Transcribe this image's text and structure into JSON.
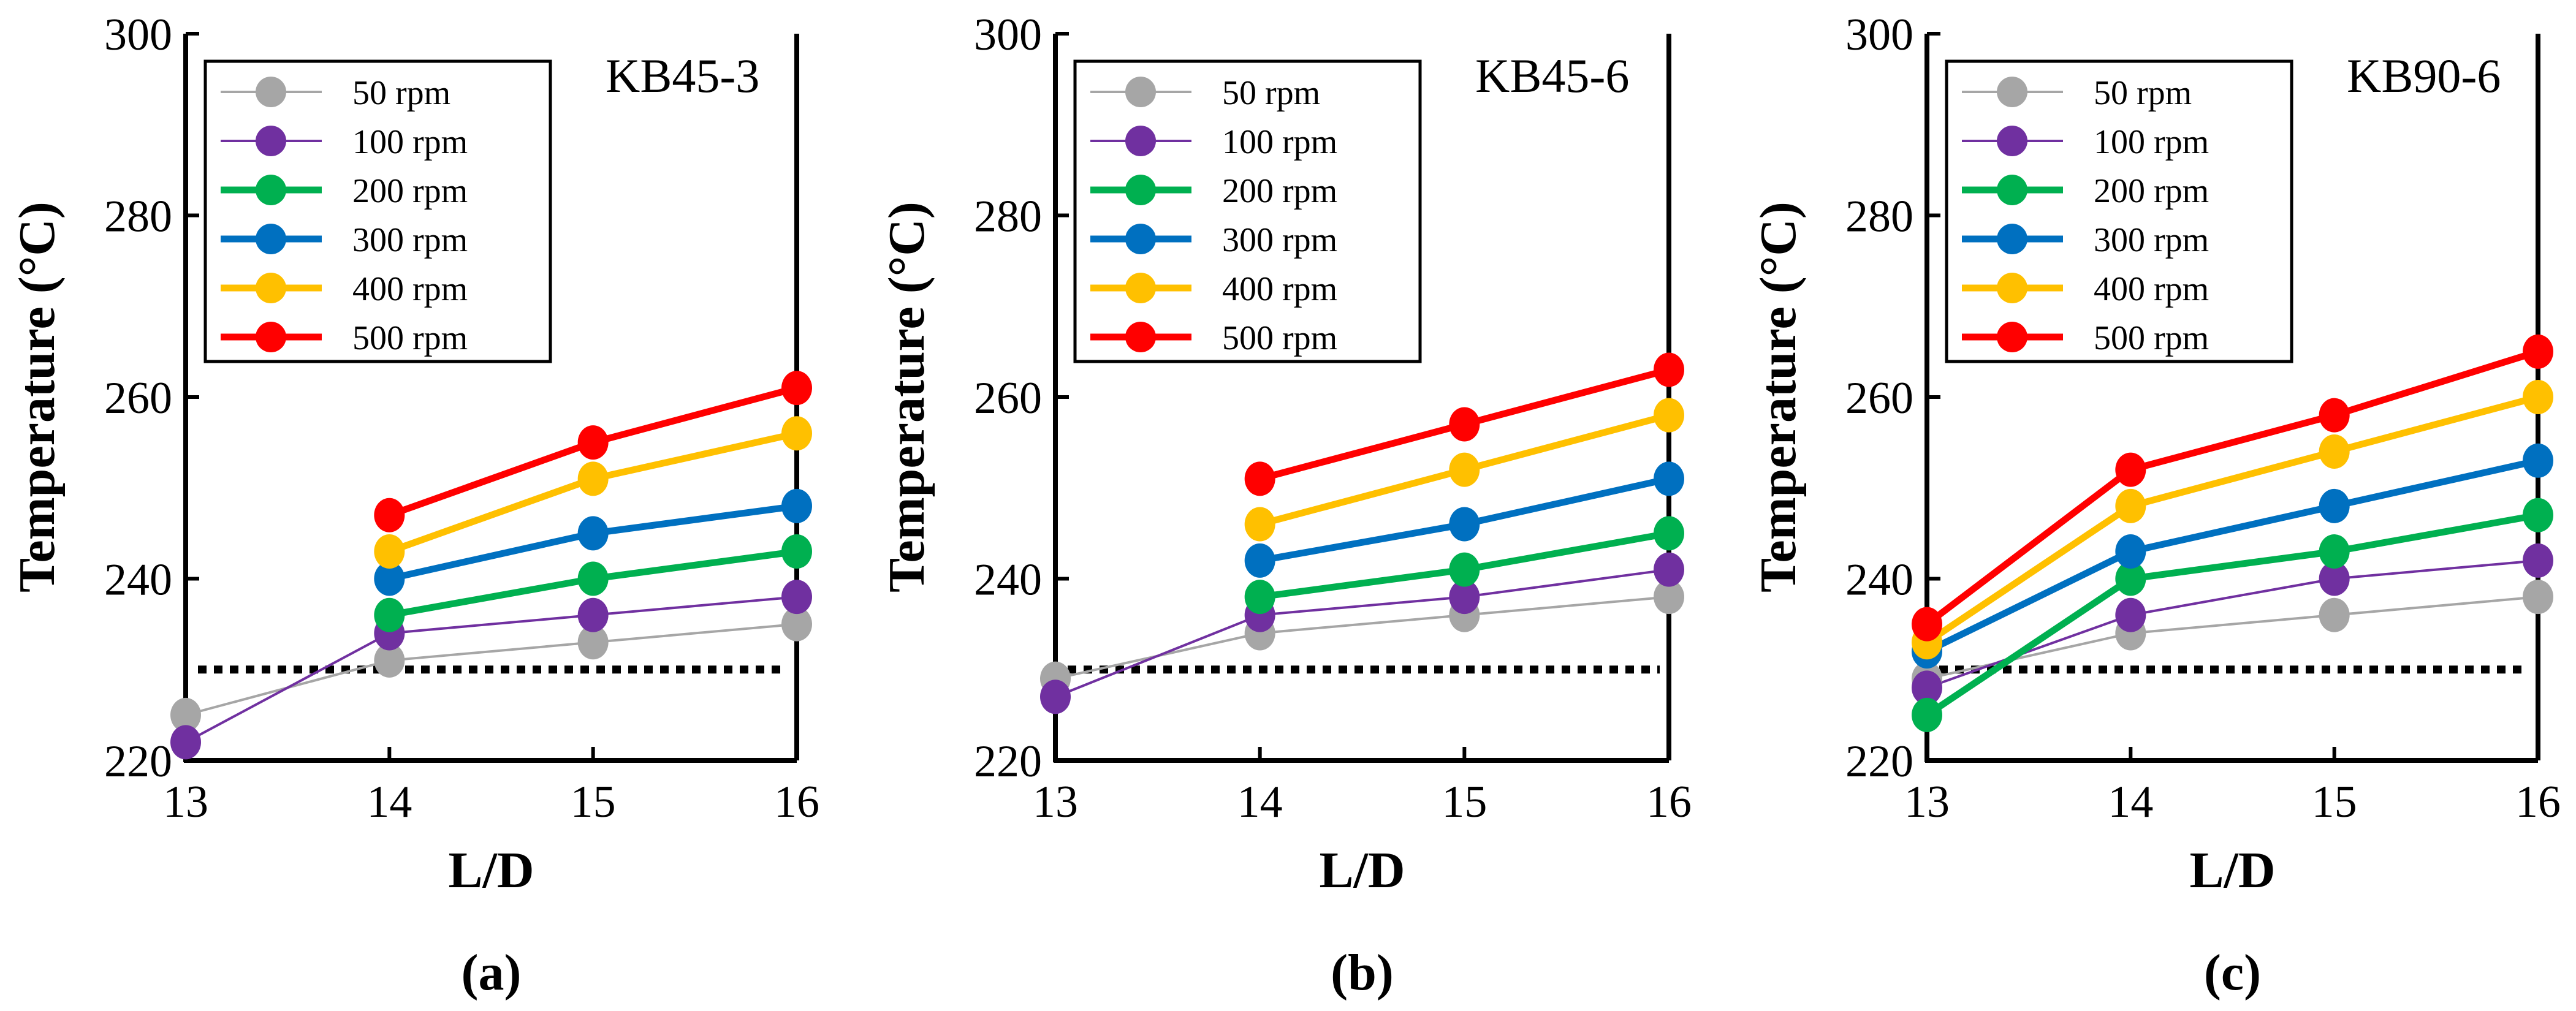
{
  "chart_data": [
    {
      "type": "line",
      "caption": "(a)",
      "title": "KB45-3",
      "xlabel": "L/D",
      "ylabel": "Temperature (°C)",
      "x": [
        13,
        14,
        15,
        16
      ],
      "xticks": [
        "13",
        "14",
        "15",
        "16"
      ],
      "yticks": [
        "220",
        "240",
        "260",
        "280",
        "300"
      ],
      "xlim": [
        13,
        16
      ],
      "ylim": [
        220,
        300
      ],
      "reference_line": 230,
      "legend_position": "top-left",
      "series": [
        {
          "name": "50 rpm",
          "color": "#a6a6a6",
          "values": [
            225,
            231,
            233,
            235
          ]
        },
        {
          "name": "100 rpm",
          "color": "#7030a0",
          "values": [
            222,
            234,
            236,
            238
          ]
        },
        {
          "name": "200 rpm",
          "color": "#00b050",
          "values": [
            null,
            236,
            240,
            243
          ]
        },
        {
          "name": "300 rpm",
          "color": "#0070c0",
          "values": [
            null,
            240,
            245,
            248
          ]
        },
        {
          "name": "400 rpm",
          "color": "#ffc000",
          "values": [
            null,
            243,
            251,
            256
          ]
        },
        {
          "name": "500 rpm",
          "color": "#ff0000",
          "values": [
            null,
            247,
            255,
            261
          ]
        }
      ]
    },
    {
      "type": "line",
      "caption": "(b)",
      "title": "KB45-6",
      "xlabel": "L/D",
      "ylabel": "Temperature (°C)",
      "x": [
        13,
        14,
        15,
        16
      ],
      "xticks": [
        "13",
        "14",
        "15",
        "16"
      ],
      "yticks": [
        "220",
        "240",
        "260",
        "280",
        "300"
      ],
      "xlim": [
        13,
        16
      ],
      "ylim": [
        220,
        300
      ],
      "reference_line": 230,
      "legend_position": "top-left",
      "series": [
        {
          "name": "50 rpm",
          "color": "#a6a6a6",
          "values": [
            229,
            234,
            236,
            238
          ]
        },
        {
          "name": "100 rpm",
          "color": "#7030a0",
          "values": [
            227,
            236,
            238,
            241
          ]
        },
        {
          "name": "200 rpm",
          "color": "#00b050",
          "values": [
            null,
            238,
            241,
            245
          ]
        },
        {
          "name": "300 rpm",
          "color": "#0070c0",
          "values": [
            null,
            242,
            246,
            251
          ]
        },
        {
          "name": "400 rpm",
          "color": "#ffc000",
          "values": [
            null,
            246,
            252,
            258
          ]
        },
        {
          "name": "500 rpm",
          "color": "#ff0000",
          "values": [
            null,
            251,
            257,
            263
          ]
        }
      ]
    },
    {
      "type": "line",
      "caption": "(c)",
      "title": "KB90-6",
      "xlabel": "L/D",
      "ylabel": "Temperature (°C)",
      "x": [
        13,
        14,
        15,
        16
      ],
      "xticks": [
        "13",
        "14",
        "15",
        "16"
      ],
      "yticks": [
        "220",
        "240",
        "260",
        "280",
        "300"
      ],
      "xlim": [
        13,
        16
      ],
      "ylim": [
        220,
        300
      ],
      "reference_line": 230,
      "legend_position": "top-left",
      "series": [
        {
          "name": "50 rpm",
          "color": "#a6a6a6",
          "values": [
            229,
            234,
            236,
            238
          ]
        },
        {
          "name": "100 rpm",
          "color": "#7030a0",
          "values": [
            228,
            236,
            240,
            242
          ]
        },
        {
          "name": "200 rpm",
          "color": "#00b050",
          "values": [
            225,
            240,
            243,
            247
          ]
        },
        {
          "name": "300 rpm",
          "color": "#0070c0",
          "values": [
            232,
            243,
            248,
            253
          ]
        },
        {
          "name": "400 rpm",
          "color": "#ffc000",
          "values": [
            233,
            248,
            254,
            260
          ]
        },
        {
          "name": "500 rpm",
          "color": "#ff0000",
          "values": [
            235,
            252,
            258,
            265
          ]
        }
      ]
    }
  ]
}
